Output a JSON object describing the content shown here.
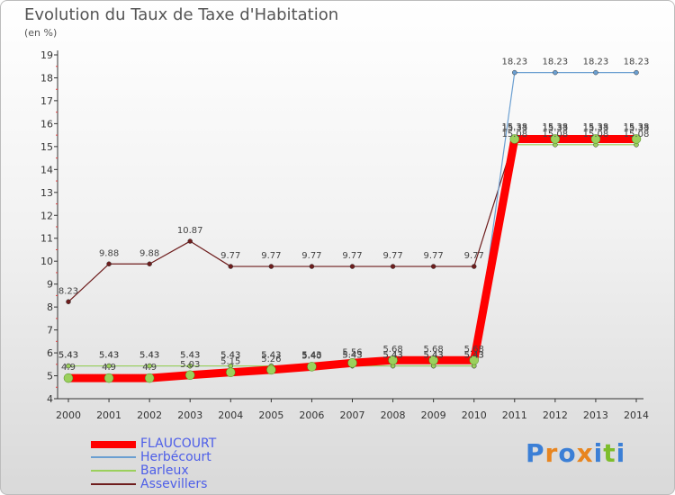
{
  "header": {
    "title": "Evolution du Taux de Taxe d'Habitation",
    "unit": "(en %)"
  },
  "brand": {
    "letters": [
      "P",
      "r",
      "o",
      "x",
      "i",
      "t",
      "i"
    ],
    "colors": [
      "#3b7fd6",
      "#e8851f",
      "#3b7fd6",
      "#e8851f",
      "#3b7fd6",
      "#7dbd2b",
      "#3b7fd6"
    ]
  },
  "chart_data": {
    "type": "line",
    "title": "Evolution du Taux de Taxe d'Habitation",
    "ylabel": "(en %)",
    "xlabel": "",
    "categories": [
      "2000",
      "2001",
      "2002",
      "2003",
      "2004",
      "2005",
      "2006",
      "2007",
      "2008",
      "2009",
      "2010",
      "2011",
      "2012",
      "2013",
      "2014"
    ],
    "ylim": [
      4,
      19
    ],
    "yticks": [
      "4",
      "5",
      "6",
      "7",
      "8",
      "9",
      "10",
      "11",
      "12",
      "13",
      "14",
      "15",
      "16",
      "17",
      "18",
      "19"
    ],
    "grid": false,
    "legend_position": "bottom-left",
    "series": [
      {
        "name": "FLAUCOURT",
        "color": "#ff0000",
        "values": [
          4.9,
          4.9,
          4.9,
          5.03,
          5.15,
          5.26,
          5.4,
          5.56,
          5.68,
          5.68,
          5.68,
          15.33,
          15.33,
          15.33,
          15.33
        ],
        "labels": [
          "4.9",
          "4.9",
          "4.9",
          "5.03",
          "5.15",
          "5.26",
          "5.40",
          "5.56",
          "5.68",
          "5.68",
          "5.68",
          "15.33",
          "15.33",
          "15.33",
          "15.33"
        ]
      },
      {
        "name": "Herbécourt",
        "color": "#6b9fd1",
        "values": [
          5.43,
          5.43,
          5.43,
          5.43,
          5.43,
          5.43,
          5.43,
          5.43,
          5.43,
          5.43,
          5.43,
          18.23,
          18.23,
          18.23,
          18.23
        ],
        "labels": [
          "5.43",
          "5.43",
          "5.43",
          "5.43",
          "5.43",
          "5.43",
          "5.43",
          "5.43",
          "5.43",
          "5.43",
          "5.43",
          "18.23",
          "18.23",
          "18.23",
          "18.23"
        ]
      },
      {
        "name": "Barleux",
        "color": "#9bd05c",
        "values": [
          5.43,
          5.43,
          5.43,
          5.43,
          5.43,
          5.43,
          5.43,
          5.43,
          5.43,
          5.43,
          5.43,
          15.08,
          15.08,
          15.08,
          15.08
        ],
        "labels": [
          "5.43",
          "5.43",
          "5.43",
          "5.43",
          "5.43",
          "5.43",
          "5.43",
          "5.43",
          "5.43",
          "5.43",
          "5.43",
          "15.08",
          "15.08",
          "15.08",
          "15.08"
        ]
      },
      {
        "name": "Assevillers",
        "color": "#6e1d1d",
        "values": [
          8.23,
          9.88,
          9.88,
          10.87,
          9.77,
          9.77,
          9.77,
          9.77,
          9.77,
          9.77,
          9.77,
          15.38,
          15.38,
          15.38,
          15.38
        ],
        "labels": [
          "8.23",
          "9.88",
          "9.88",
          "10.87",
          "9.77",
          "9.77",
          "9.77",
          "9.77",
          "9.77",
          "9.77",
          "9.77",
          "15.38",
          "15.38",
          "15.38",
          "15.38"
        ]
      }
    ]
  }
}
